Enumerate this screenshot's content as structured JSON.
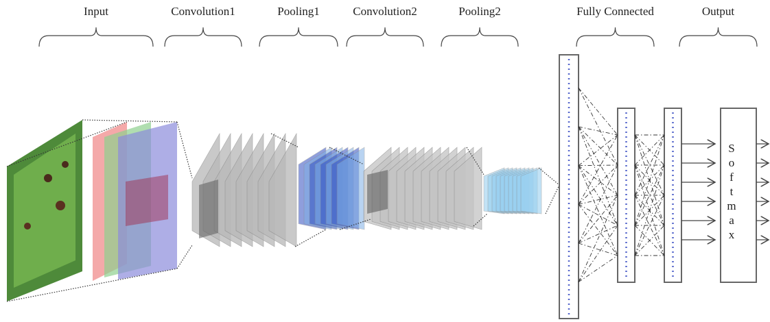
{
  "stages": [
    {
      "label": "Input"
    },
    {
      "label": "Convolution1"
    },
    {
      "label": "Pooling1"
    },
    {
      "label": "Convolution2"
    },
    {
      "label": "Pooling2"
    },
    {
      "label": "Fully Connected"
    },
    {
      "label": "Output"
    }
  ],
  "softmax_letters": [
    "S",
    "o",
    "f",
    "t",
    "m",
    "a",
    "x"
  ]
}
